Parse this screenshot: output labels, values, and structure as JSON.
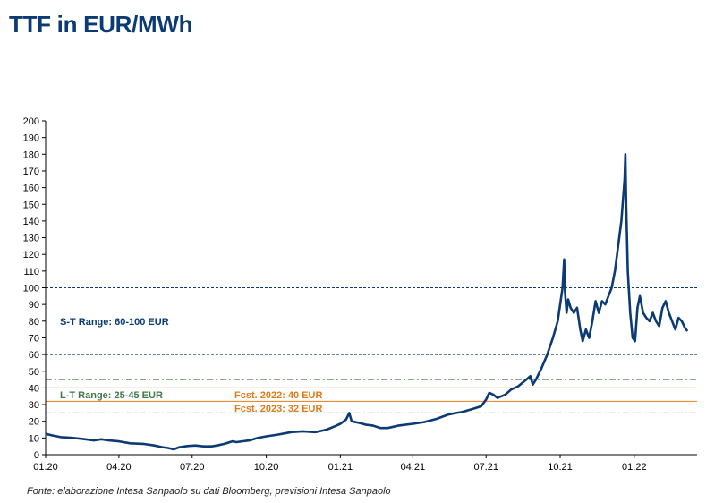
{
  "page": {
    "title": "TTF in EUR/MWh",
    "source": "Fonte: elaborazione Intesa Sanpaolo su dati Bloomberg, previsioni Intesa Sanpaolo"
  },
  "chart_data": {
    "type": "line",
    "title": "TTF in EUR/MWh",
    "xlabel": "",
    "ylabel": "",
    "ylim": [
      0,
      200
    ],
    "ytick_step": 10,
    "xlim": [
      "2020-01-01",
      "2022-03-20"
    ],
    "xticks": [
      {
        "date": "2020-01-01",
        "label": "01.20"
      },
      {
        "date": "2020-04-01",
        "label": "04.20"
      },
      {
        "date": "2020-07-01",
        "label": "07.20"
      },
      {
        "date": "2020-10-01",
        "label": "10.20"
      },
      {
        "date": "2021-01-01",
        "label": "01.21"
      },
      {
        "date": "2021-04-01",
        "label": "04.21"
      },
      {
        "date": "2021-07-01",
        "label": "07.21"
      },
      {
        "date": "2021-10-01",
        "label": "10.21"
      },
      {
        "date": "2022-01-01",
        "label": "01.22"
      }
    ],
    "grid": false,
    "series": [
      {
        "name": "",
        "color": "#0b3a74",
        "points": [
          [
            "2020-01-01",
            12.5
          ],
          [
            "2020-01-10",
            11.5
          ],
          [
            "2020-01-20",
            10.5
          ],
          [
            "2020-02-01",
            10.2
          ],
          [
            "2020-02-15",
            9.5
          ],
          [
            "2020-03-01",
            8.5
          ],
          [
            "2020-03-10",
            9.2
          ],
          [
            "2020-03-20",
            8.5
          ],
          [
            "2020-04-01",
            8.0
          ],
          [
            "2020-04-15",
            6.8
          ],
          [
            "2020-05-01",
            6.5
          ],
          [
            "2020-05-15",
            5.5
          ],
          [
            "2020-05-25",
            4.5
          ],
          [
            "2020-06-01",
            4.0
          ],
          [
            "2020-06-08",
            3.2
          ],
          [
            "2020-06-15",
            4.5
          ],
          [
            "2020-06-25",
            5.2
          ],
          [
            "2020-07-05",
            5.5
          ],
          [
            "2020-07-15",
            5.0
          ],
          [
            "2020-07-25",
            5.0
          ],
          [
            "2020-08-01",
            5.5
          ],
          [
            "2020-08-10",
            6.5
          ],
          [
            "2020-08-20",
            8.0
          ],
          [
            "2020-08-25",
            7.5
          ],
          [
            "2020-09-01",
            8.0
          ],
          [
            "2020-09-10",
            8.5
          ],
          [
            "2020-09-20",
            10.0
          ],
          [
            "2020-10-01",
            11.0
          ],
          [
            "2020-10-15",
            12.0
          ],
          [
            "2020-11-01",
            13.5
          ],
          [
            "2020-11-15",
            14.0
          ],
          [
            "2020-12-01",
            13.5
          ],
          [
            "2020-12-15",
            15.0
          ],
          [
            "2020-12-25",
            17.0
          ],
          [
            "2021-01-01",
            18.5
          ],
          [
            "2021-01-08",
            21.0
          ],
          [
            "2021-01-12",
            25.0
          ],
          [
            "2021-01-15",
            20.0
          ],
          [
            "2021-01-25",
            19.0
          ],
          [
            "2021-02-01",
            18.0
          ],
          [
            "2021-02-10",
            17.5
          ],
          [
            "2021-02-20",
            16.0
          ],
          [
            "2021-03-01",
            16.0
          ],
          [
            "2021-03-15",
            17.5
          ],
          [
            "2021-04-01",
            18.5
          ],
          [
            "2021-04-15",
            19.5
          ],
          [
            "2021-05-01",
            21.5
          ],
          [
            "2021-05-15",
            24.0
          ],
          [
            "2021-05-25",
            25.0
          ],
          [
            "2021-06-01",
            25.5
          ],
          [
            "2021-06-15",
            27.5
          ],
          [
            "2021-06-25",
            29.0
          ],
          [
            "2021-07-01",
            33.0
          ],
          [
            "2021-07-05",
            37.0
          ],
          [
            "2021-07-10",
            36.0
          ],
          [
            "2021-07-15",
            34.0
          ],
          [
            "2021-07-25",
            36.0
          ],
          [
            "2021-08-01",
            39.0
          ],
          [
            "2021-08-10",
            41.0
          ],
          [
            "2021-08-20",
            45.0
          ],
          [
            "2021-08-25",
            47.0
          ],
          [
            "2021-08-28",
            42.0
          ],
          [
            "2021-09-01",
            45.0
          ],
          [
            "2021-09-08",
            52.0
          ],
          [
            "2021-09-15",
            60.0
          ],
          [
            "2021-09-22",
            70.0
          ],
          [
            "2021-09-28",
            80.0
          ],
          [
            "2021-10-01",
            90.0
          ],
          [
            "2021-10-04",
            100.0
          ],
          [
            "2021-10-06",
            117.0
          ],
          [
            "2021-10-07",
            98.0
          ],
          [
            "2021-10-09",
            85.0
          ],
          [
            "2021-10-11",
            93.0
          ],
          [
            "2021-10-14",
            88.0
          ],
          [
            "2021-10-18",
            85.0
          ],
          [
            "2021-10-22",
            88.0
          ],
          [
            "2021-10-26",
            75.0
          ],
          [
            "2021-10-29",
            68.0
          ],
          [
            "2021-11-02",
            75.0
          ],
          [
            "2021-11-06",
            70.0
          ],
          [
            "2021-11-10",
            80.0
          ],
          [
            "2021-11-14",
            92.0
          ],
          [
            "2021-11-18",
            85.0
          ],
          [
            "2021-11-22",
            92.0
          ],
          [
            "2021-11-26",
            90.0
          ],
          [
            "2021-11-30",
            95.0
          ],
          [
            "2021-12-04",
            100.0
          ],
          [
            "2021-12-08",
            110.0
          ],
          [
            "2021-12-12",
            125.0
          ],
          [
            "2021-12-16",
            140.0
          ],
          [
            "2021-12-20",
            165.0
          ],
          [
            "2021-12-21",
            180.0
          ],
          [
            "2021-12-22",
            150.0
          ],
          [
            "2021-12-24",
            110.0
          ],
          [
            "2021-12-27",
            85.0
          ],
          [
            "2021-12-30",
            70.0
          ],
          [
            "2022-01-02",
            68.0
          ],
          [
            "2022-01-05",
            88.0
          ],
          [
            "2022-01-08",
            95.0
          ],
          [
            "2022-01-12",
            85.0
          ],
          [
            "2022-01-16",
            82.0
          ],
          [
            "2022-01-20",
            80.0
          ],
          [
            "2022-01-24",
            85.0
          ],
          [
            "2022-01-28",
            80.0
          ],
          [
            "2022-02-01",
            77.0
          ],
          [
            "2022-02-05",
            88.0
          ],
          [
            "2022-02-09",
            92.0
          ],
          [
            "2022-02-13",
            85.0
          ],
          [
            "2022-02-17",
            80.0
          ],
          [
            "2022-02-21",
            75.0
          ],
          [
            "2022-02-25",
            82.0
          ],
          [
            "2022-03-01",
            80.0
          ],
          [
            "2022-03-05",
            76.0
          ],
          [
            "2022-03-08",
            74.0
          ]
        ]
      }
    ],
    "reference_lines": [
      {
        "value": 100,
        "style": "dashed",
        "color": "#0b3a74"
      },
      {
        "value": 60,
        "style": "dashed",
        "color": "#0b3a74"
      },
      {
        "value": 45,
        "style": "dashdot",
        "color": "#3f7a4a"
      },
      {
        "value": 40,
        "style": "solid",
        "color": "#e07b1a"
      },
      {
        "value": 32,
        "style": "solid",
        "color": "#e07b1a"
      },
      {
        "value": 25,
        "style": "dashdot",
        "color": "#3f7a4a"
      }
    ],
    "annotations": [
      {
        "text": "S-T Range: 60-100 EUR",
        "value": 80,
        "color": "#0b3a74"
      },
      {
        "text": "L-T Range: 25-45 EUR",
        "value": 36,
        "color": "#3f7a4a"
      },
      {
        "text": "Fcst. 2022: 40 EUR",
        "value": 36,
        "color": "#e07b1a"
      },
      {
        "text": "Fcst. 2023: 32 EUR",
        "value": 28,
        "color": "#e07b1a"
      }
    ]
  }
}
